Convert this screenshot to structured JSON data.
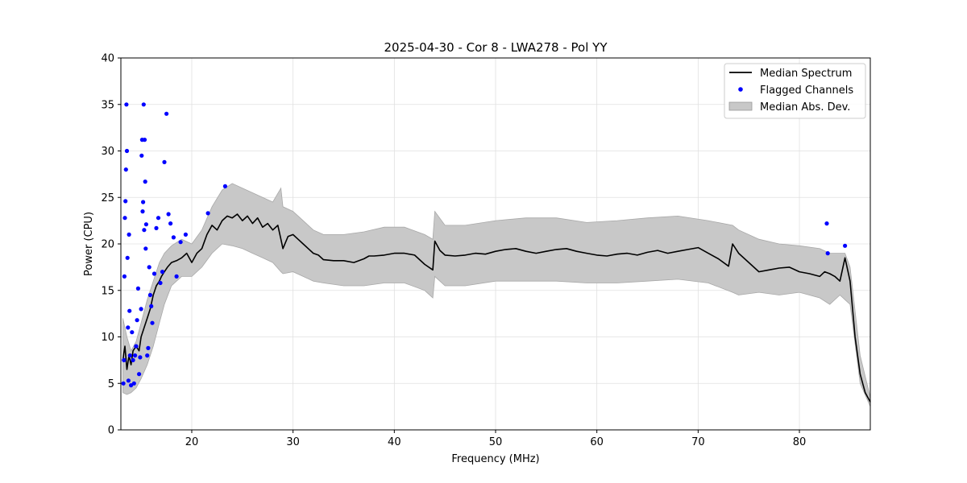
{
  "chart_data": {
    "type": "line",
    "title": "2025-04-30 - Cor 8 - LWA278 - Pol YY",
    "xlabel": "Frequency (MHz)",
    "ylabel": "Power (CPU)",
    "xlim": [
      13,
      87
    ],
    "ylim": [
      0,
      40
    ],
    "xticks": [
      20,
      30,
      40,
      50,
      60,
      70,
      80
    ],
    "yticks": [
      0,
      5,
      10,
      15,
      20,
      25,
      30,
      35,
      40
    ],
    "grid": true,
    "legend_position": "top-right",
    "legend": [
      {
        "label": "Median Spectrum",
        "kind": "line",
        "color": "#000000"
      },
      {
        "label": "Flagged Channels",
        "kind": "point",
        "color": "#0000ff"
      },
      {
        "label": "Median Abs. Dev.",
        "kind": "band",
        "color": "#c8c8c8"
      }
    ],
    "series": [
      {
        "name": "Median Spectrum",
        "color": "#000000",
        "x": [
          13.2,
          13.4,
          13.6,
          13.8,
          14.0,
          14.2,
          14.5,
          14.8,
          15.0,
          15.3,
          15.6,
          15.9,
          16.2,
          16.5,
          16.8,
          17.0,
          17.3,
          17.6,
          18.0,
          18.5,
          19.0,
          19.5,
          20.0,
          20.5,
          21.0,
          21.5,
          22.0,
          22.5,
          23.0,
          23.5,
          24.0,
          24.5,
          25.0,
          25.5,
          26.0,
          26.5,
          27.0,
          27.5,
          28.0,
          28.5,
          28.8,
          29.0,
          29.5,
          30.0,
          30.5,
          31.0,
          31.5,
          32.0,
          32.5,
          33.0,
          34.0,
          35.0,
          36.0,
          37.0,
          37.5,
          38.0,
          39.0,
          40.0,
          41.0,
          42.0,
          43.0,
          43.8,
          44.0,
          44.5,
          45.0,
          46.0,
          47.0,
          48.0,
          49.0,
          50.0,
          51.0,
          52.0,
          53.0,
          54.0,
          55.0,
          56.0,
          57.0,
          58.0,
          59.0,
          60.0,
          61.0,
          62.0,
          63.0,
          64.0,
          65.0,
          66.0,
          67.0,
          68.0,
          69.0,
          70.0,
          71.0,
          72.0,
          73.0,
          73.4,
          74.0,
          75.0,
          76.0,
          77.0,
          78.0,
          79.0,
          80.0,
          81.0,
          82.0,
          82.5,
          83.0,
          83.5,
          84.0,
          84.5,
          85.0,
          85.5,
          86.0,
          86.5,
          87.0
        ],
        "y": [
          7.5,
          9.0,
          6.5,
          8.0,
          7.0,
          8.5,
          9.0,
          8.5,
          10.0,
          11.0,
          12.0,
          13.0,
          14.5,
          15.5,
          16.0,
          16.5,
          17.0,
          17.5,
          18.0,
          18.2,
          18.5,
          19.0,
          18.0,
          19.0,
          19.5,
          21.0,
          22.0,
          21.5,
          22.5,
          23.0,
          22.8,
          23.2,
          22.5,
          23.0,
          22.2,
          22.8,
          21.8,
          22.2,
          21.5,
          22.0,
          20.5,
          19.5,
          20.8,
          21.0,
          20.5,
          20.0,
          19.5,
          19.0,
          18.8,
          18.3,
          18.2,
          18.2,
          18.0,
          18.4,
          18.7,
          18.7,
          18.8,
          19.0,
          19.0,
          18.8,
          17.8,
          17.2,
          20.3,
          19.3,
          18.8,
          18.7,
          18.8,
          19.0,
          18.9,
          19.2,
          19.4,
          19.5,
          19.2,
          19.0,
          19.2,
          19.4,
          19.5,
          19.2,
          19.0,
          18.8,
          18.7,
          18.9,
          19.0,
          18.8,
          19.1,
          19.3,
          19.0,
          19.2,
          19.4,
          19.6,
          19.0,
          18.4,
          17.6,
          20.0,
          19.0,
          18.0,
          17.0,
          17.2,
          17.4,
          17.5,
          17.0,
          16.8,
          16.5,
          17.0,
          16.8,
          16.5,
          16.0,
          18.5,
          16.0,
          10.0,
          6.0,
          4.0,
          3.0
        ]
      },
      {
        "name": "Median Abs. Dev.",
        "color": "#c8c8c8",
        "x": [
          13.2,
          13.6,
          14.0,
          14.5,
          15.0,
          15.6,
          16.2,
          16.8,
          17.3,
          18.0,
          19.0,
          20.0,
          21.0,
          22.0,
          23.0,
          24.0,
          25.0,
          26.0,
          27.0,
          28.0,
          28.8,
          29.0,
          30.0,
          31.0,
          32.0,
          33.0,
          35.0,
          37.0,
          39.0,
          41.0,
          43.0,
          43.8,
          44.0,
          45.0,
          47.0,
          50.0,
          53.0,
          56.0,
          59.0,
          62.0,
          65.0,
          68.0,
          71.0,
          73.4,
          74.0,
          76.0,
          78.0,
          80.0,
          82.0,
          83.0,
          84.0,
          84.5,
          85.0,
          86.0,
          87.0
        ],
        "upper": [
          12.0,
          10.0,
          8.5,
          9.5,
          11.5,
          14.0,
          16.0,
          18.0,
          19.0,
          19.8,
          20.5,
          20.0,
          21.5,
          24.0,
          25.8,
          26.5,
          26.0,
          25.5,
          25.0,
          24.5,
          26.0,
          24.0,
          23.5,
          22.5,
          21.5,
          21.0,
          21.0,
          21.3,
          21.8,
          21.8,
          21.0,
          20.5,
          23.5,
          22.0,
          22.0,
          22.5,
          22.8,
          22.8,
          22.3,
          22.5,
          22.8,
          23.0,
          22.5,
          22.0,
          21.5,
          20.5,
          20.0,
          19.8,
          19.5,
          19.0,
          19.0,
          19.0,
          17.5,
          8.0,
          3.5
        ],
        "lower": [
          4.0,
          3.8,
          4.0,
          4.5,
          5.5,
          7.0,
          9.0,
          11.5,
          13.5,
          15.5,
          16.5,
          16.5,
          17.5,
          19.0,
          20.0,
          19.8,
          19.5,
          19.0,
          18.5,
          18.0,
          17.0,
          16.8,
          17.0,
          16.5,
          16.0,
          15.8,
          15.5,
          15.5,
          15.8,
          15.8,
          15.0,
          14.2,
          16.5,
          15.5,
          15.5,
          16.0,
          16.0,
          16.0,
          15.8,
          15.8,
          16.0,
          16.2,
          15.8,
          14.8,
          14.5,
          14.8,
          14.5,
          14.8,
          14.2,
          13.5,
          14.5,
          14.0,
          13.5,
          5.0,
          2.5
        ]
      },
      {
        "name": "Flagged Channels",
        "color": "#0000ff",
        "x": [
          13.25,
          13.3,
          13.35,
          13.4,
          13.45,
          13.5,
          13.55,
          13.6,
          13.65,
          13.7,
          13.75,
          13.8,
          13.85,
          13.9,
          14.0,
          14.1,
          14.2,
          14.3,
          14.4,
          14.5,
          14.6,
          14.7,
          14.8,
          14.9,
          15.0,
          15.05,
          15.1,
          15.15,
          15.2,
          15.25,
          15.3,
          15.35,
          15.4,
          15.45,
          15.5,
          15.6,
          15.7,
          15.8,
          15.9,
          16.0,
          16.1,
          16.3,
          16.5,
          16.7,
          16.9,
          17.1,
          17.3,
          17.5,
          17.7,
          17.9,
          18.2,
          18.5,
          18.9,
          19.4,
          21.6,
          23.3,
          82.7,
          82.8,
          84.5
        ],
        "y": [
          5.0,
          7.5,
          16.5,
          22.8,
          24.6,
          28.0,
          35.0,
          30.0,
          18.5,
          11.0,
          5.3,
          21.0,
          12.8,
          8.0,
          4.8,
          10.5,
          7.5,
          5.0,
          8.0,
          9.0,
          11.8,
          15.2,
          6.0,
          7.8,
          13.0,
          29.5,
          31.2,
          23.5,
          24.5,
          35.0,
          21.5,
          31.2,
          26.7,
          19.5,
          22.1,
          8.0,
          8.8,
          17.5,
          14.5,
          13.3,
          11.5,
          16.8,
          21.7,
          22.8,
          15.8,
          17.0,
          28.8,
          34.0,
          23.2,
          22.2,
          20.7,
          16.5,
          20.2,
          21.0,
          23.3,
          26.2,
          22.2,
          19.0,
          19.8
        ]
      }
    ]
  }
}
